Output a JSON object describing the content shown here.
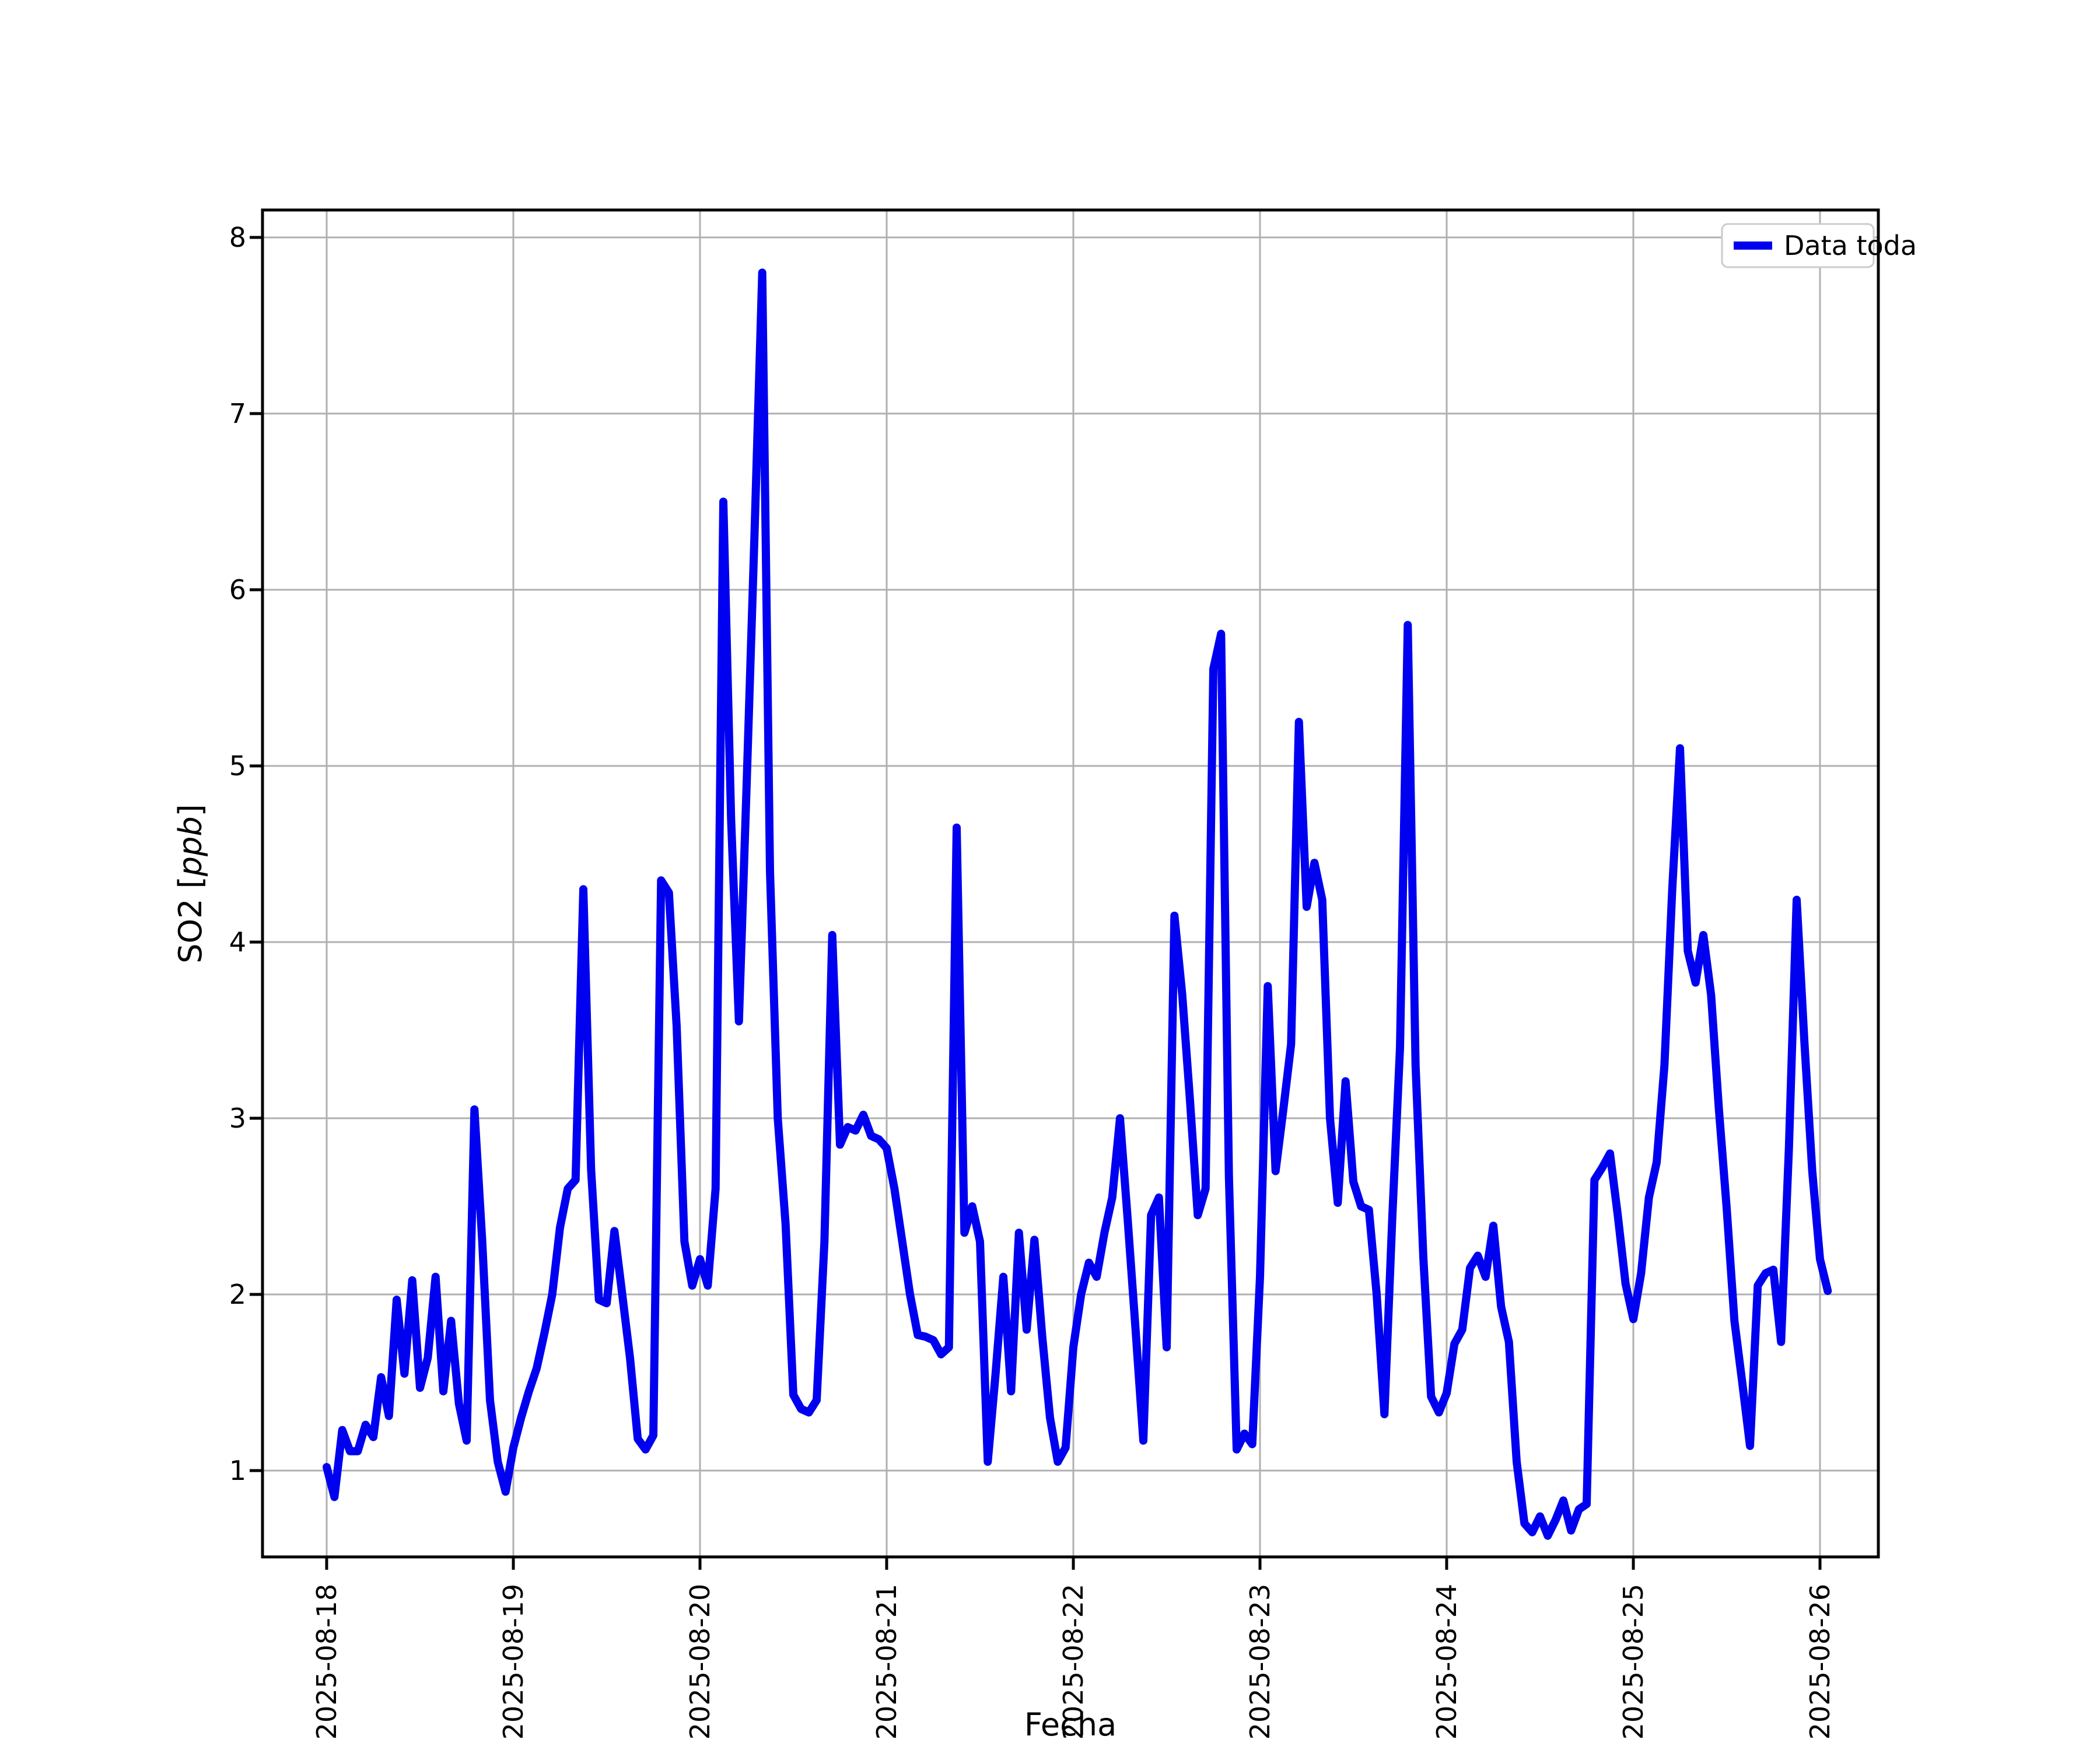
{
  "figure": {
    "background": "#ffffff",
    "text_color": "#000000"
  },
  "legend": {
    "label": "Data toda",
    "border_color": "#cccccc",
    "background": "#ffffff"
  },
  "axes": {
    "xlabel": "Fecha",
    "ylabel": "SO2 [ppb]",
    "ylabel_prefix": "SO2 [",
    "ylabel_italic": "ppb",
    "ylabel_suffix": "]",
    "grid_color": "#b0b0b0",
    "spine_color": "#000000"
  },
  "chart_data": {
    "type": "line",
    "title": "",
    "xlabel": "Fecha",
    "ylabel": "SO2 [ppb]",
    "grid": true,
    "legend_position": "upper right",
    "x_tick_labels": [
      "2025-08-18",
      "2025-08-19",
      "2025-08-20",
      "2025-08-21",
      "2025-08-22",
      "2025-08-23",
      "2025-08-24",
      "2025-08-25",
      "2025-08-26"
    ],
    "y_tick_labels": [
      "1",
      "2",
      "3",
      "4",
      "5",
      "6",
      "7",
      "8"
    ],
    "y_ticks": [
      1,
      2,
      3,
      4,
      5,
      6,
      7,
      8
    ],
    "ylim": [
      0.5,
      8.16
    ],
    "xlim_hours": [
      -8.25,
      199.5
    ],
    "x_start": "2025-08-18 00:00",
    "x_step_hours": 1,
    "series": [
      {
        "name": "Data toda",
        "color": "#0000f0",
        "values": [
          1.02,
          0.85,
          1.23,
          1.11,
          1.11,
          1.26,
          1.19,
          1.53,
          1.31,
          1.97,
          1.55,
          2.08,
          1.47,
          1.64,
          2.1,
          1.45,
          1.85,
          1.38,
          1.17,
          3.05,
          2.3,
          1.4,
          1.05,
          0.88,
          1.13,
          1.3,
          1.45,
          1.58,
          1.78,
          2.0,
          2.38,
          2.6,
          2.65,
          4.3,
          2.71,
          1.97,
          1.95,
          2.36,
          2.0,
          1.64,
          1.18,
          1.12,
          1.2,
          4.35,
          4.28,
          3.52,
          2.3,
          2.05,
          2.2,
          2.05,
          2.6,
          6.5,
          4.7,
          3.55,
          4.9,
          6.3,
          7.8,
          4.4,
          3.0,
          2.4,
          1.43,
          1.35,
          1.33,
          1.4,
          2.3,
          4.04,
          2.85,
          2.95,
          2.93,
          3.02,
          2.9,
          2.88,
          2.83,
          2.6,
          2.3,
          2.0,
          1.77,
          1.76,
          1.74,
          1.66,
          1.7,
          4.65,
          2.35,
          2.5,
          2.3,
          1.05,
          1.55,
          2.1,
          1.45,
          2.35,
          1.8,
          2.31,
          1.76,
          1.3,
          1.05,
          1.13,
          1.7,
          2.0,
          2.18,
          2.1,
          2.35,
          2.55,
          3.0,
          2.42,
          1.8,
          1.17,
          2.45,
          2.55,
          1.7,
          4.15,
          3.7,
          3.1,
          2.45,
          2.6,
          5.55,
          5.75,
          2.67,
          1.12,
          1.21,
          1.15,
          2.1,
          3.75,
          2.7,
          3.05,
          3.42,
          5.25,
          4.2,
          4.45,
          4.24,
          3.0,
          2.52,
          3.21,
          2.64,
          2.5,
          2.48,
          2.0,
          1.32,
          2.43,
          3.4,
          5.8,
          3.3,
          2.21,
          1.42,
          1.33,
          1.44,
          1.72,
          1.8,
          2.15,
          2.22,
          2.1,
          2.39,
          1.93,
          1.73,
          1.05,
          0.7,
          0.65,
          0.74,
          0.63,
          0.72,
          0.83,
          0.66,
          0.78,
          0.81,
          2.65,
          2.72,
          2.8,
          2.45,
          2.06,
          1.86,
          2.12,
          2.55,
          2.75,
          3.3,
          4.3,
          5.1,
          3.95,
          3.77,
          4.04,
          3.7,
          3.05,
          2.49,
          1.85,
          1.5,
          1.14,
          2.05,
          2.12,
          2.14,
          1.73,
          2.83,
          4.24,
          3.43,
          2.7,
          2.2,
          2.02
        ]
      }
    ]
  }
}
